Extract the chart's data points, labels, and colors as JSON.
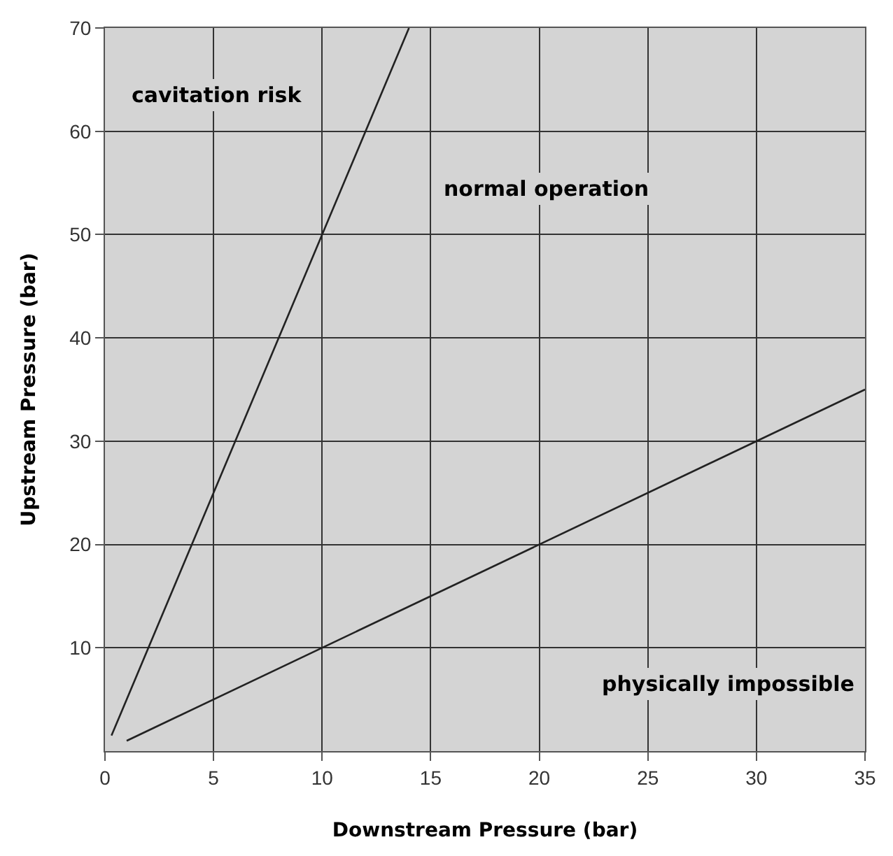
{
  "chart_data": {
    "type": "line",
    "xlabel": "Downstream Pressure (bar)",
    "ylabel": "Upstream Pressure (bar)",
    "series": [
      {
        "color": "#222222",
        "x": [
          0.3,
          14
        ],
        "values": [
          1.5,
          70
        ]
      },
      {
        "color": "#222222",
        "x": [
          1,
          35
        ],
        "values": [
          1,
          35
        ]
      }
    ],
    "xlim": [
      0,
      35
    ],
    "xticks": [
      0,
      5,
      10,
      15,
      20,
      25,
      30,
      35
    ],
    "ylim": [
      0,
      70
    ],
    "yticks": [
      10,
      20,
      30,
      40,
      50,
      60,
      70
    ],
    "grid": true,
    "marker": "none",
    "line_style": "solid",
    "annotations": [
      "cavitation risk",
      "normal operation",
      "physically impossible"
    ]
  }
}
